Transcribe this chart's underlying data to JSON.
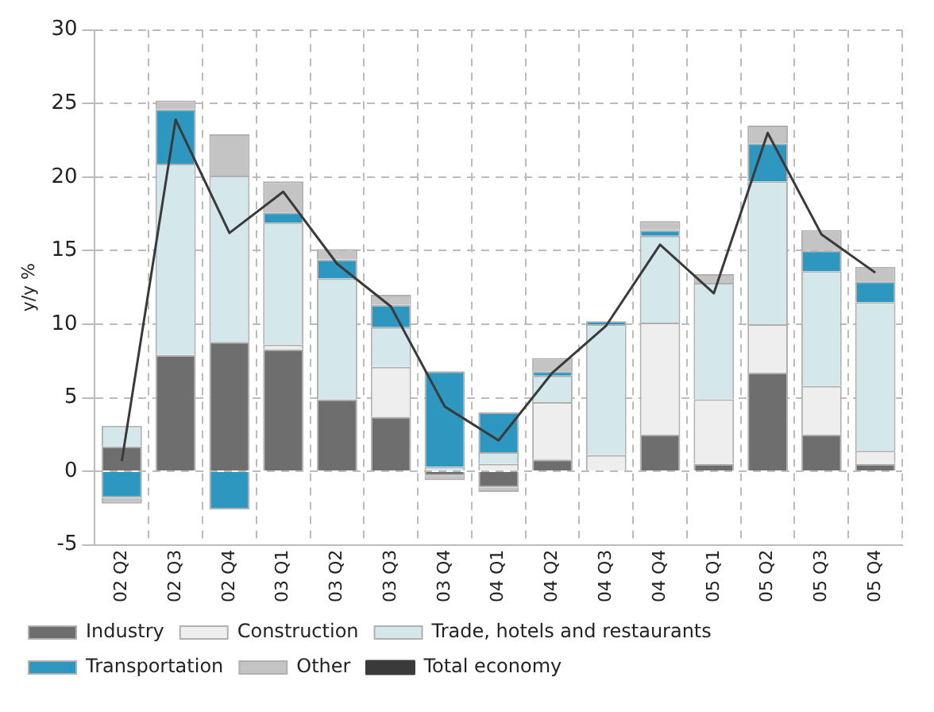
{
  "chart_data": {
    "type": "bar",
    "stacked": true,
    "ylabel": "y/y %",
    "categories": [
      "02 Q2",
      "02 Q3",
      "02 Q4",
      "03 Q1",
      "03 Q2",
      "03 Q3",
      "03 Q4",
      "04 Q1",
      "04 Q2",
      "04 Q3",
      "04 Q4",
      "05 Q1",
      "05 Q2",
      "05 Q3",
      "05 Q4"
    ],
    "ylim": [
      -5,
      30
    ],
    "yticks": [
      -5,
      0,
      5,
      10,
      15,
      20,
      25,
      30
    ],
    "grid": true,
    "legend": "bottom",
    "series": [
      {
        "name": "Industry",
        "color": "#6e6e6e",
        "values": [
          1.7,
          7.9,
          8.8,
          8.3,
          4.9,
          3.7,
          -0.3,
          -1.1,
          0.8,
          0,
          2.5,
          0.5,
          6.7,
          2.5,
          0.5
        ]
      },
      {
        "name": "Construction",
        "color": "#eeeeee",
        "values": [
          0,
          0,
          0,
          0.3,
          0,
          3.4,
          0,
          0.5,
          3.9,
          1.1,
          7.6,
          4.4,
          3.3,
          3.3,
          0.9
        ]
      },
      {
        "name": "Trade, hotels and restaurants",
        "color": "#d4e8ec",
        "values": [
          1.4,
          13.0,
          11.3,
          8.3,
          8.2,
          2.7,
          0.3,
          0.8,
          1.8,
          8.9,
          5.9,
          7.9,
          9.7,
          7.8,
          10.1
        ]
      },
      {
        "name": "Transportation",
        "color": "#2e97bf",
        "values": [
          -1.8,
          3.7,
          -2.6,
          0.7,
          1.3,
          1.5,
          6.5,
          2.7,
          0.3,
          0.2,
          0.4,
          0,
          2.6,
          1.4,
          1.4
        ]
      },
      {
        "name": "Other",
        "color": "#c4c4c4",
        "values": [
          -0.4,
          0.6,
          2.8,
          2.1,
          0.7,
          0.7,
          -0.3,
          -0.3,
          0.9,
          0,
          0.6,
          0.6,
          1.2,
          1.4,
          1.0
        ]
      },
      {
        "name": "Total economy",
        "type": "line",
        "color": "#3a3a3a",
        "marker": "none",
        "values": [
          0.7,
          23.9,
          16.2,
          19.0,
          14.1,
          11.2,
          4.4,
          2.1,
          6.7,
          9.9,
          15.4,
          12.1,
          23.0,
          16.1,
          13.5
        ]
      }
    ]
  }
}
